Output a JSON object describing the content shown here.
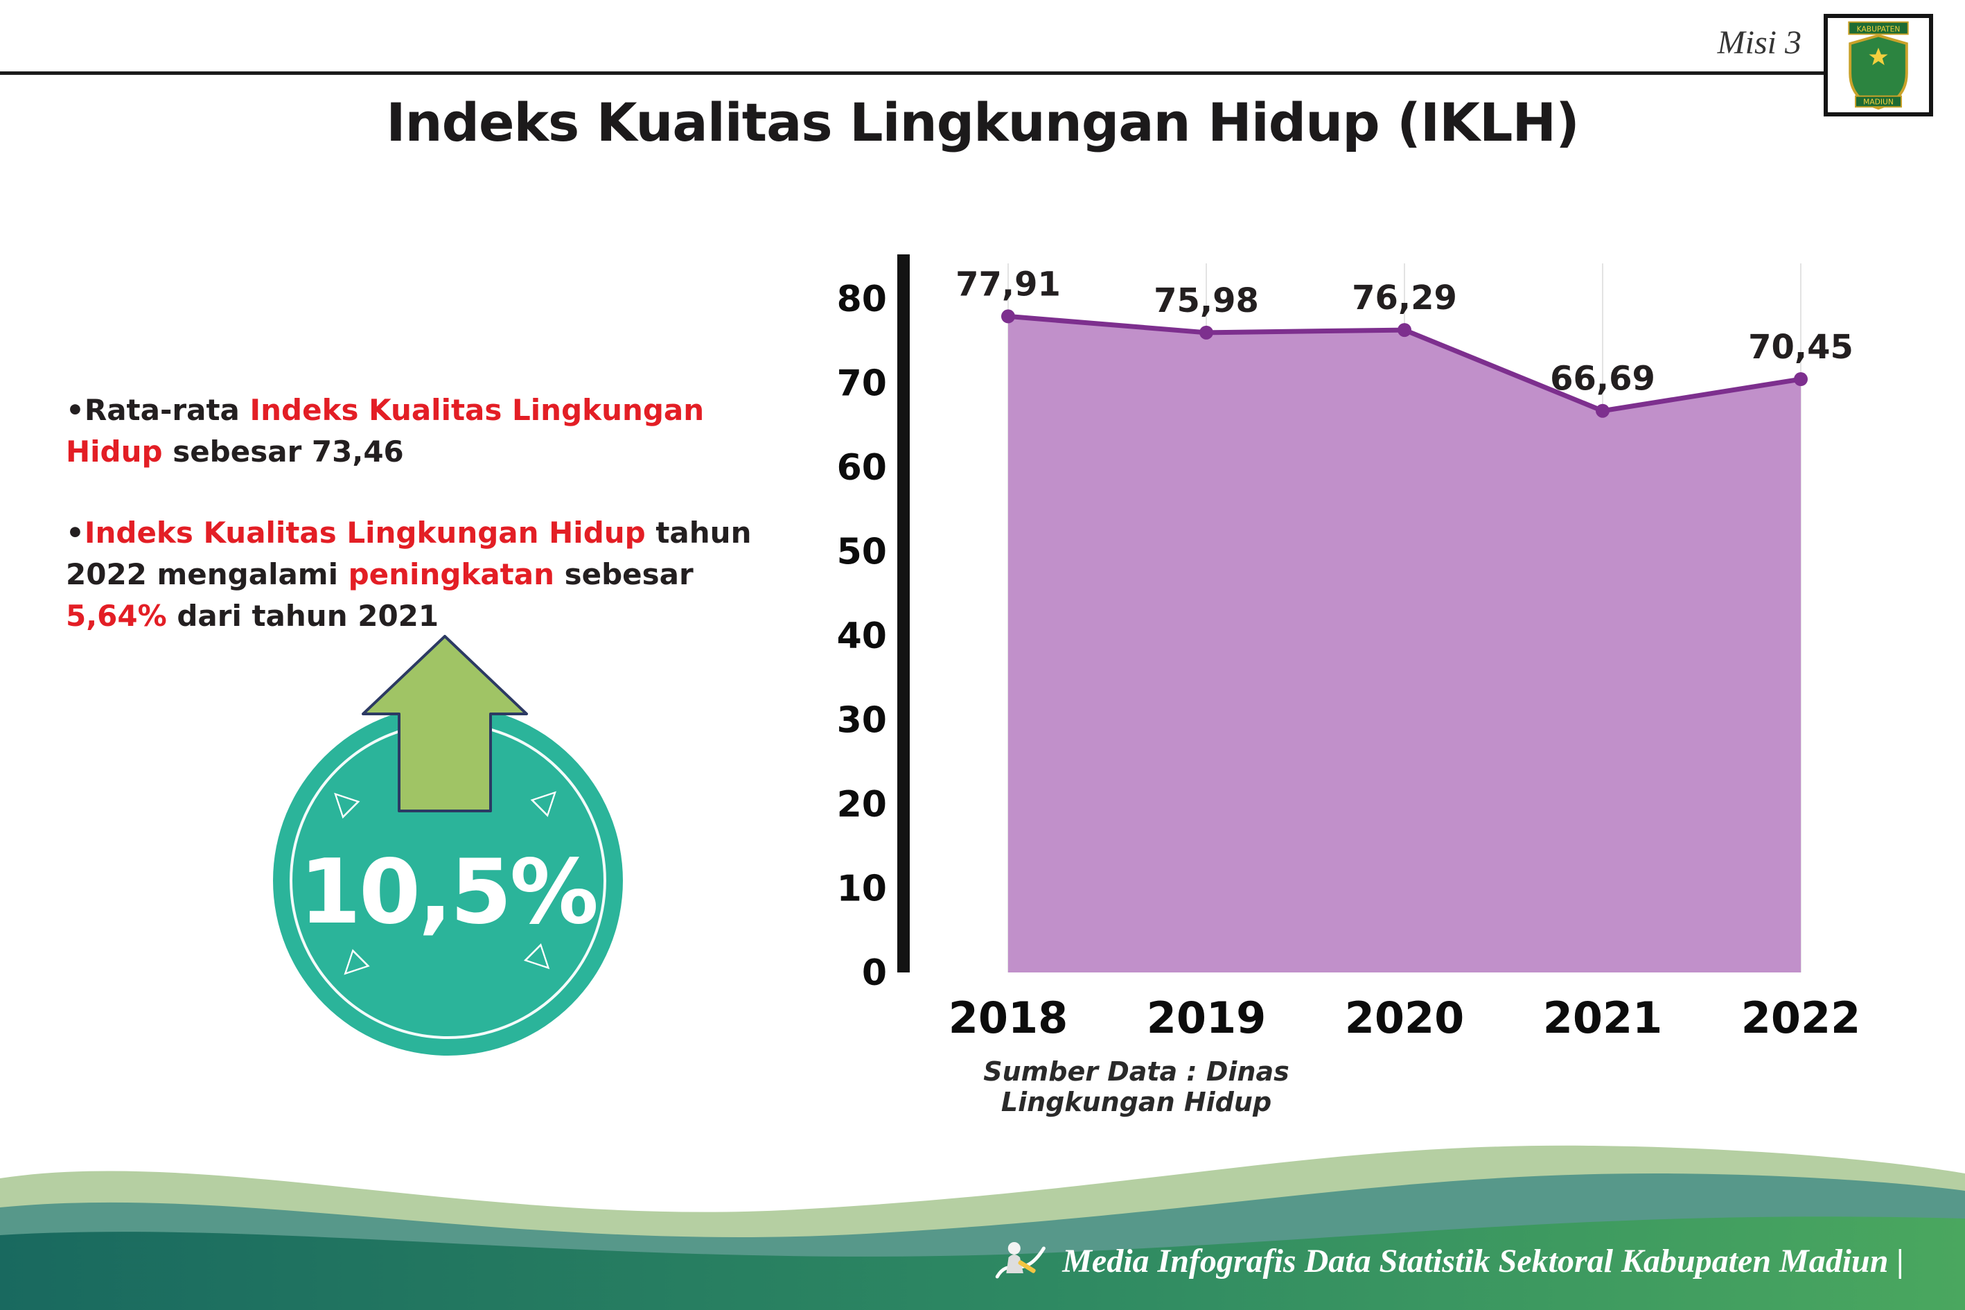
{
  "header": {
    "mission_label": "Misi 3",
    "title": "Indeks Kualitas Lingkungan Hidup (IKLH)",
    "logo_top_text": "KABUPATEN",
    "logo_bottom_text": "MADIUN"
  },
  "bullet_marker": "•",
  "bullets": [
    {
      "segments": [
        {
          "text": "Rata-rata ",
          "color": "dark"
        },
        {
          "text": "Indeks Kualitas Lingkungan Hidup",
          "color": "red"
        },
        {
          "text": " sebesar 73,46",
          "color": "dark"
        }
      ]
    },
    {
      "segments": [
        {
          "text": "Indeks Kualitas Lingkungan Hidup",
          "color": "red"
        },
        {
          "text": " tahun 2022 mengalami ",
          "color": "dark"
        },
        {
          "text": "peningkatan",
          "color": "red"
        },
        {
          "text": " sebesar ",
          "color": "dark"
        },
        {
          "text": "5,64%",
          "color": "red"
        },
        {
          "text": " dari tahun 2021",
          "color": "dark"
        }
      ]
    }
  ],
  "badge": {
    "value": "10,5%",
    "triangle_glyph": "▷"
  },
  "chart_data": {
    "type": "area",
    "title": "Indeks Kualitas Lingkungan Hidup (IKLH)",
    "categories": [
      "2018",
      "2019",
      "2020",
      "2021",
      "2022"
    ],
    "values": [
      77.91,
      75.98,
      76.29,
      66.69,
      70.45
    ],
    "value_labels": [
      "77,91",
      "75,98",
      "76,29",
      "66,69",
      "70,45"
    ],
    "ylim": [
      0,
      80
    ],
    "yticks": [
      0,
      10,
      20,
      30,
      40,
      50,
      60,
      70,
      80
    ],
    "xlabel": "",
    "ylabel": "",
    "legend": "none",
    "grid": "vertical-light",
    "source_note": "Sumber Data : Dinas Lingkungan Hidup"
  },
  "footer": {
    "credit": "Media Infografis Data Statistik Sektoral Kabupaten Madiun |"
  },
  "colors": {
    "red_accent": "#e31e25",
    "dark_text": "#231f20",
    "teal_badge": "#2bb49a",
    "arrow_green": "#a0c465",
    "line_purple": "#7d2f8e",
    "fill_purple": "#c190ca",
    "axis_black": "#131313",
    "wave_sage": "#b5cfa2",
    "wave_teal": "#57988a",
    "wave_dark_teal": "#19695f",
    "wave_green": "#4aa75f"
  }
}
